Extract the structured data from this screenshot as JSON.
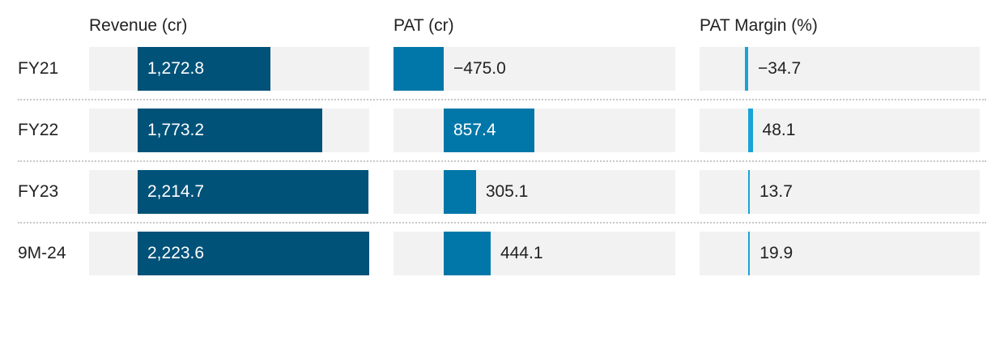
{
  "chart_data": {
    "type": "bar",
    "categories": [
      "FY21",
      "FY22",
      "FY23",
      "9M-24"
    ],
    "panels": [
      {
        "title": "Revenue (cr)",
        "values": [
          1272.8,
          1773.2,
          2214.7,
          2223.6
        ],
        "labels": [
          "1,272.8",
          "1,773.2",
          "2,214.7",
          "2,223.6"
        ],
        "color": "#005279"
      },
      {
        "title": "PAT (cr)",
        "values": [
          -475.0,
          857.4,
          305.1,
          444.1
        ],
        "labels": [
          "−475.0",
          "857.4",
          "305.1",
          "444.1"
        ],
        "color": "#0077a8"
      },
      {
        "title": "PAT Margin (%)",
        "values": [
          -34.7,
          48.1,
          13.7,
          19.9
        ],
        "labels": [
          "−34.7",
          "48.1",
          "13.7",
          "19.9"
        ],
        "color": "#1aa3d6"
      }
    ],
    "colors": {
      "track": "#f2f2f2",
      "separator": "#c8c8c8"
    }
  }
}
